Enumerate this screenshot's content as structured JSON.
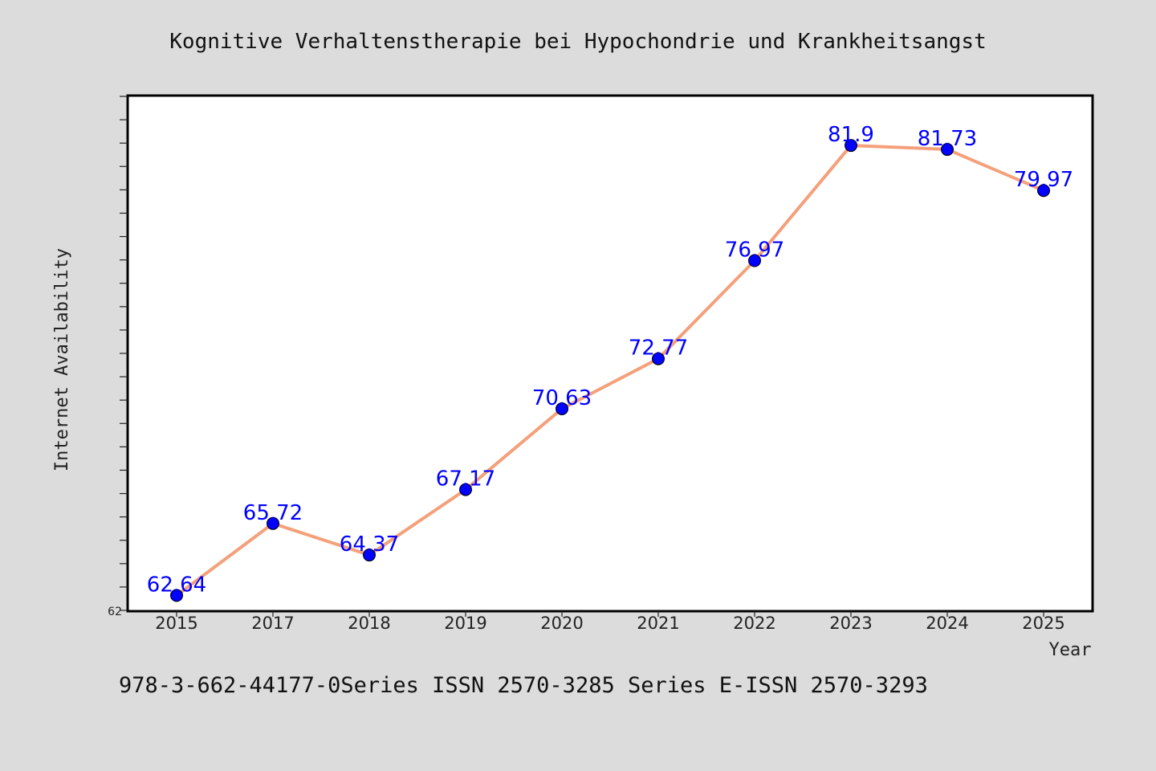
{
  "chart_data": {
    "type": "line",
    "title": "Kognitive Verhaltenstherapie bei Hypochondrie und Krankheitsangst",
    "xlabel": "Year",
    "ylabel": "Internet Availability",
    "categories": [
      "2015",
      "2017",
      "2018",
      "2019",
      "2020",
      "2021",
      "2022",
      "2023",
      "2024",
      "2025"
    ],
    "series": [
      {
        "values": [
          62.64,
          65.72,
          64.37,
          67.17,
          70.63,
          72.77,
          76.97,
          81.9,
          81.73,
          79.97
        ],
        "labels": [
          "62.64",
          "65.72",
          "64.37",
          "67.17",
          "70.63",
          "72.77",
          "76.97",
          "81.9",
          "81.73",
          "79.97"
        ]
      }
    ],
    "ylim": [
      62,
      84
    ],
    "y_tick_labels": [
      "62"
    ],
    "grid": false,
    "line_color": "#f4a07a",
    "marker_color": "#0000ff",
    "label_color": "#0000ff"
  },
  "footer": {
    "text": "978-3-662-44177-0Series ISSN 2570-3285 Series E-ISSN 2570-3293"
  }
}
